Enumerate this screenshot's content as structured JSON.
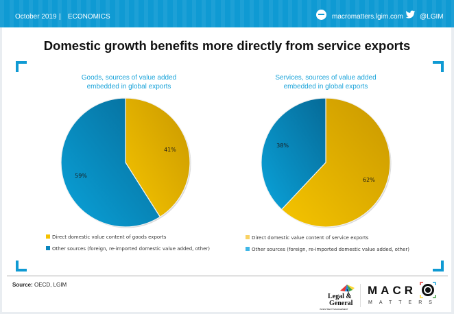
{
  "header": {
    "date": "October 2019",
    "separator": "|",
    "section": "ECONOMICS",
    "website_icon": "web-chat-icon",
    "website": "macromatters.lgim.com",
    "twitter_icon": "twitter-bird-icon",
    "twitter_handle": "@LGIM"
  },
  "title": "Domestic growth benefits more directly from service exports",
  "colors": {
    "brand_blue": "#0f9ad3",
    "chart_title": "#1aa3d9",
    "gold": "#e8b800",
    "blue": "#0a86bd"
  },
  "chart_data": [
    {
      "type": "pie",
      "title": "Goods, sources of value added embedded in global exports",
      "title_lines": [
        "Goods, sources of value  added",
        "embedded in global exports"
      ],
      "slices": [
        {
          "label": "Direct domestic value content  of goods exports",
          "value": 41,
          "display": "41%",
          "color": "#e8b800"
        },
        {
          "label": "Other sources (foreign, re-imported domestic value added, other)",
          "value": 59,
          "display": "59%",
          "color": "#0a86bd"
        }
      ],
      "start": "12 o'clock, clockwise",
      "legend_position": "bottom"
    },
    {
      "type": "pie",
      "title": "Services, sources of value added embedded in global exports",
      "title_lines": [
        "Services, sources of value  added",
        "embedded in global exports"
      ],
      "slices": [
        {
          "label": "Direct domestic value content  of service exports",
          "value": 62,
          "display": "62%",
          "color": "#e8b800"
        },
        {
          "label": "Other sources (foreign, re-imported domestic value added, other)",
          "value": 38,
          "display": "38%",
          "color": "#0a86bd"
        }
      ],
      "start": "12 o'clock, clockwise",
      "legend_position": "bottom"
    }
  ],
  "footer": {
    "source_label": "Source:",
    "source_text": " OECD, LGIM",
    "lg_logo_line1": "Legal &",
    "lg_logo_line2": "General",
    "lg_logo_sub": "INVESTMENT MANAGEMENT",
    "macro_text": "MACR",
    "matters_text": "MATTERS"
  }
}
